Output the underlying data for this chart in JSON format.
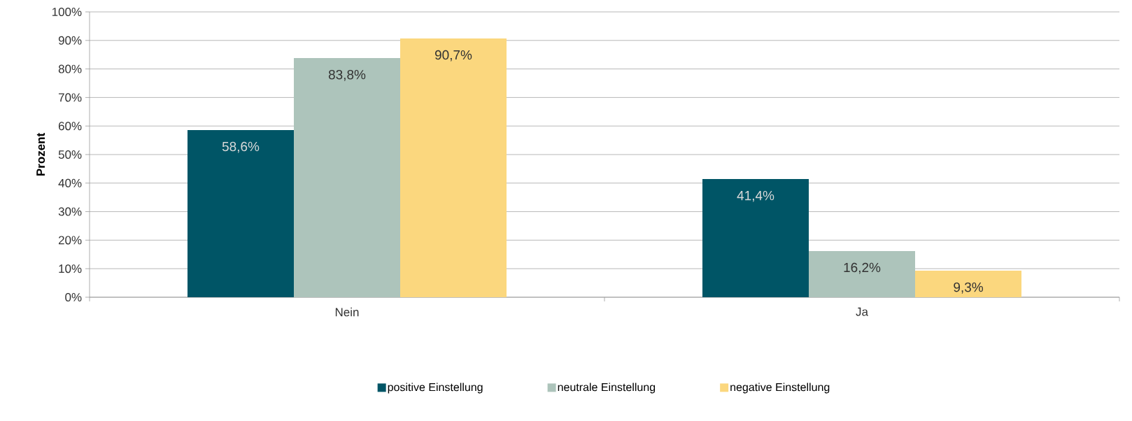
{
  "chart_data": {
    "type": "bar",
    "ylabel": "Prozent",
    "categories": [
      "Nein",
      "Ja"
    ],
    "series": [
      {
        "name": "positive Einstellung",
        "color": "#005566",
        "values": [
          58.6,
          41.4
        ],
        "value_labels": [
          "58,6%",
          "41,4%"
        ]
      },
      {
        "name": "neutrale Einstellung",
        "color": "#adc4bb",
        "values": [
          83.8,
          16.2
        ],
        "value_labels": [
          "83,8%",
          "16,2%"
        ]
      },
      {
        "name": "negative Einstellung",
        "color": "#fbd77e",
        "values": [
          90.7,
          9.3
        ],
        "value_labels": [
          "90,7%",
          "9,3%"
        ]
      }
    ],
    "ylim": [
      0,
      100
    ],
    "yticks": [
      {
        "value": 0,
        "label": "0%"
      },
      {
        "value": 10,
        "label": "10%"
      },
      {
        "value": 20,
        "label": "20%"
      },
      {
        "value": 30,
        "label": "30%"
      },
      {
        "value": 40,
        "label": "40%"
      },
      {
        "value": 50,
        "label": "50%"
      },
      {
        "value": 60,
        "label": "60%"
      },
      {
        "value": 70,
        "label": "70%"
      },
      {
        "value": 80,
        "label": "80%"
      },
      {
        "value": 90,
        "label": "90%"
      },
      {
        "value": 100,
        "label": "100%"
      }
    ],
    "grid": "y",
    "legend": "bottom"
  }
}
